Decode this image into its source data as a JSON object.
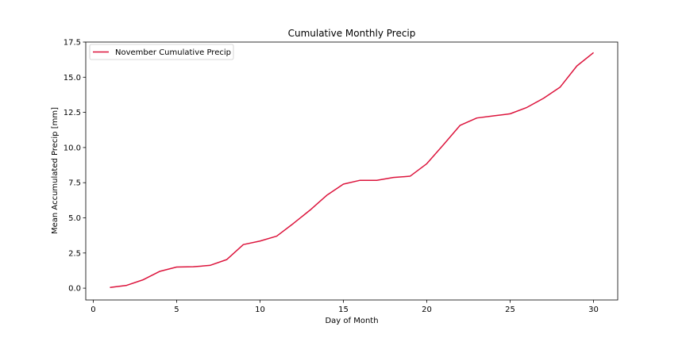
{
  "chart_data": {
    "type": "line",
    "title": "Cumulative Monthly Precip",
    "xlabel": "Day of Month",
    "ylabel": "Mean Accumulated Precip [mm]",
    "xlim": [
      -0.45,
      31.45
    ],
    "ylim": [
      -0.84,
      17.5
    ],
    "xticks": [
      0,
      5,
      10,
      15,
      20,
      25,
      30
    ],
    "xtick_labels": [
      "0",
      "5",
      "10",
      "15",
      "20",
      "25",
      "30"
    ],
    "yticks": [
      0,
      2.5,
      5,
      7.5,
      10,
      12.5,
      15,
      17.5
    ],
    "ytick_labels": [
      "0.0",
      "2.5",
      "5.0",
      "7.5",
      "10.0",
      "12.5",
      "15.0",
      "17.5"
    ],
    "grid": false,
    "legend_position": "top-left",
    "series": [
      {
        "name": "November Cumulative Precip",
        "color": "#dc143c",
        "x": [
          1,
          2,
          3,
          4,
          5,
          6,
          7,
          8,
          9,
          10,
          11,
          12,
          13,
          14,
          15,
          16,
          17,
          18,
          19,
          20,
          21,
          22,
          23,
          24,
          25,
          26,
          27,
          28,
          29,
          30
        ],
        "y": [
          0.05,
          0.2,
          0.6,
          1.2,
          1.5,
          1.52,
          1.62,
          2.03,
          3.1,
          3.35,
          3.7,
          4.6,
          5.55,
          6.6,
          7.4,
          7.67,
          7.67,
          7.87,
          7.96,
          8.85,
          10.2,
          11.58,
          12.1,
          12.25,
          12.4,
          12.85,
          13.5,
          14.3,
          15.8,
          16.75
        ]
      }
    ]
  }
}
